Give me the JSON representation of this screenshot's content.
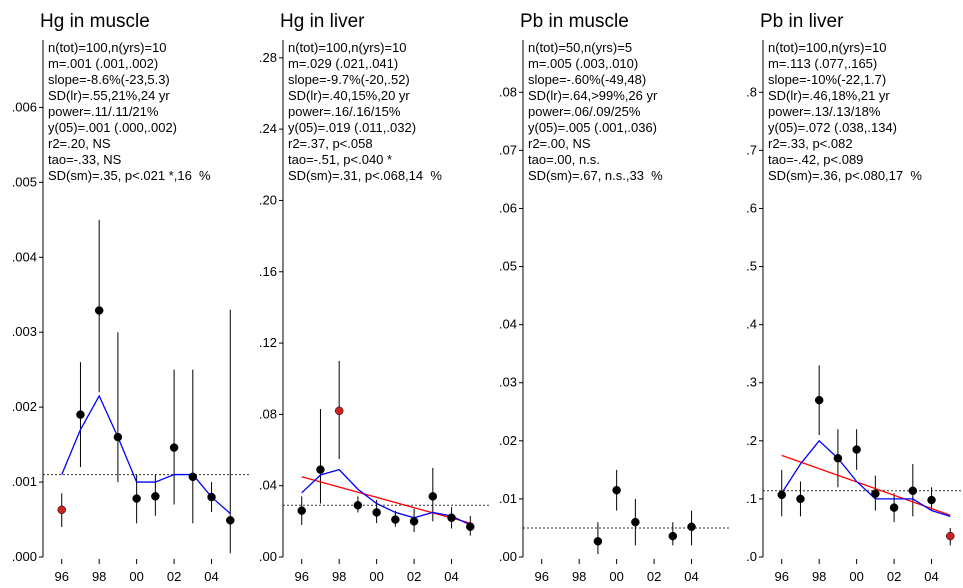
{
  "chart_data": [
    {
      "type": "scatter",
      "title": "Hg in muscle",
      "stats": [
        "n(tot)=100,n(yrs)=10",
        "m=.001 (.001,.002)",
        "slope=-8.6%(-23,5.3)",
        "SD(lr)=.55,21%,24 yr",
        "power=.11/.11/21%",
        "y(05)=.001 (.000,.002)",
        "r2=.20, NS",
        "tao=-.33, NS",
        "SD(sm)=.35, p<.021 *,16  %"
      ],
      "xlim": [
        1995,
        2006
      ],
      "ylim": [
        0,
        0.0069
      ],
      "xticks": [
        {
          "value": 1996,
          "label": "96"
        },
        {
          "value": 1998,
          "label": "98"
        },
        {
          "value": 2000,
          "label": "00"
        },
        {
          "value": 2002,
          "label": "02"
        },
        {
          "value": 2004,
          "label": "04"
        }
      ],
      "yticks": [
        {
          "value": 0,
          "label": ".000"
        },
        {
          "value": 0.001,
          "label": ".001"
        },
        {
          "value": 0.002,
          "label": ".002"
        },
        {
          "value": 0.003,
          "label": ".003"
        },
        {
          "value": 0.004,
          "label": ".004"
        },
        {
          "value": 0.005,
          "label": ".005"
        },
        {
          "value": 0.006,
          "label": ".006"
        }
      ],
      "x": [
        1996,
        1997,
        1998,
        1999,
        2000,
        2001,
        2002,
        2003,
        2004,
        2005
      ],
      "values": [
        0.00063,
        0.0019,
        0.00329,
        0.0016,
        0.00078,
        0.00081,
        0.00146,
        0.00107,
        0.0008,
        0.00049
      ],
      "point_colors": [
        "#cc2222",
        "#000000",
        "#000000",
        "#000000",
        "#000000",
        "#000000",
        "#000000",
        "#000000",
        "#000000",
        "#000000"
      ],
      "ci_low": [
        0.0004,
        0.0012,
        0.0022,
        0.001,
        0.00045,
        0.00055,
        0.0007,
        0.00045,
        0.0006,
        5e-05
      ],
      "ci_high": [
        0.00085,
        0.0026,
        0.0045,
        0.003,
        0.0011,
        0.0011,
        0.0025,
        0.0025,
        0.001,
        0.0033
      ],
      "smooth": {
        "color": "#0000ff",
        "x": [
          1996,
          1997,
          1998,
          1999,
          2000,
          2001,
          2002,
          2003,
          2004,
          2005
        ],
        "values": [
          0.0011,
          0.0017,
          0.00215,
          0.0016,
          0.001,
          0.001,
          0.0011,
          0.0011,
          0.0008,
          0.00058
        ]
      },
      "reference": {
        "value": 0.0011
      }
    },
    {
      "type": "scatter",
      "title": "Hg in liver",
      "stats": [
        "n(tot)=100,n(yrs)=10",
        "m=.029 (.021,.041)",
        "slope=-9.7%(-20,.52)",
        "SD(lr)=.40,15%,20 yr",
        "power=.16/.16/15%",
        "y(05)=.019 (.011,.032)",
        "r2=.37, p<.058",
        "tao=-.51, p<.040 *",
        "SD(sm)=.31, p<.068,14  %"
      ],
      "xlim": [
        1995,
        2006
      ],
      "ylim": [
        0,
        0.29
      ],
      "xticks": [
        {
          "value": 1996,
          "label": "96"
        },
        {
          "value": 1998,
          "label": "98"
        },
        {
          "value": 2000,
          "label": "00"
        },
        {
          "value": 2002,
          "label": "02"
        },
        {
          "value": 2004,
          "label": "04"
        }
      ],
      "yticks": [
        {
          "value": 0,
          "label": ".00"
        },
        {
          "value": 0.04,
          "label": ".04"
        },
        {
          "value": 0.08,
          "label": ".08"
        },
        {
          "value": 0.12,
          "label": ".12"
        },
        {
          "value": 0.16,
          "label": ".16"
        },
        {
          "value": 0.2,
          "label": ".20"
        },
        {
          "value": 0.24,
          "label": ".24"
        },
        {
          "value": 0.28,
          "label": ".28"
        }
      ],
      "x": [
        1996,
        1997,
        1998,
        1999,
        2000,
        2001,
        2002,
        2003,
        2004,
        2005
      ],
      "values": [
        0.026,
        0.049,
        0.082,
        0.029,
        0.025,
        0.021,
        0.02,
        0.034,
        0.022,
        0.017
      ],
      "point_colors": [
        "#000000",
        "#000000",
        "#cc2222",
        "#000000",
        "#000000",
        "#000000",
        "#000000",
        "#000000",
        "#000000",
        "#000000"
      ],
      "ci_low": [
        0.018,
        0.03,
        0.055,
        0.025,
        0.019,
        0.017,
        0.014,
        0.02,
        0.016,
        0.012
      ],
      "ci_high": [
        0.034,
        0.083,
        0.11,
        0.034,
        0.032,
        0.026,
        0.027,
        0.05,
        0.028,
        0.023
      ],
      "smooth": {
        "color": "#0000ff",
        "x": [
          1996,
          1997,
          1998,
          1999,
          2000,
          2001,
          2002,
          2003,
          2004,
          2005
        ],
        "values": [
          0.036,
          0.046,
          0.049,
          0.038,
          0.03,
          0.025,
          0.022,
          0.025,
          0.023,
          0.018
        ]
      },
      "trend": {
        "color": "#ff0000",
        "x": [
          1996,
          2005
        ],
        "values": [
          0.045,
          0.019
        ]
      },
      "reference": {
        "value": 0.029
      }
    },
    {
      "type": "scatter",
      "title": "Pb in muscle",
      "stats": [
        "n(tot)=50,n(yrs)=5",
        "m=.005 (.003,.010)",
        "slope=-.60%(-49,48)",
        "SD(lr)=.64,>99%,26 yr",
        "power=.06/.09/25%",
        "y(05)=.005 (.001,.036)",
        "r2=.00, NS",
        "tao=.00, n.s.",
        "SD(sm)=.67, n.s.,33  %"
      ],
      "xlim": [
        1995,
        2006
      ],
      "ylim": [
        0,
        0.089
      ],
      "xticks": [
        {
          "value": 1996,
          "label": "96"
        },
        {
          "value": 1998,
          "label": "98"
        },
        {
          "value": 2000,
          "label": "00"
        },
        {
          "value": 2002,
          "label": "02"
        },
        {
          "value": 2004,
          "label": "04"
        }
      ],
      "yticks": [
        {
          "value": 0,
          "label": ".00"
        },
        {
          "value": 0.01,
          "label": ".01"
        },
        {
          "value": 0.02,
          "label": ".02"
        },
        {
          "value": 0.03,
          "label": ".03"
        },
        {
          "value": 0.04,
          "label": ".04"
        },
        {
          "value": 0.05,
          "label": ".05"
        },
        {
          "value": 0.06,
          "label": ".06"
        },
        {
          "value": 0.07,
          "label": ".07"
        },
        {
          "value": 0.08,
          "label": ".08"
        }
      ],
      "x": [
        1999,
        2000,
        2001,
        2003,
        2004
      ],
      "values": [
        0.0027,
        0.0115,
        0.006,
        0.0036,
        0.0052
      ],
      "point_colors": [
        "#000000",
        "#000000",
        "#000000",
        "#000000",
        "#000000"
      ],
      "ci_low": [
        0.0005,
        0.008,
        0.002,
        0.002,
        0.002
      ],
      "ci_high": [
        0.006,
        0.015,
        0.01,
        0.006,
        0.008
      ],
      "reference": {
        "value": 0.005
      }
    },
    {
      "type": "scatter",
      "title": "Pb in liver",
      "stats": [
        "n(tot)=100,n(yrs)=10",
        "m=.113 (.077,.165)",
        "slope=-10%(-22,1.7)",
        "SD(lr)=.46,18%,21 yr",
        "power=.13/.13/18%",
        "y(05)=.072 (.038,.134)",
        "r2=.33, p<.082",
        "tao=-.42, p<.089",
        "SD(sm)=.36, p<.080,17  %"
      ],
      "xlim": [
        1995,
        2006
      ],
      "ylim": [
        0,
        0.89
      ],
      "xticks": [
        {
          "value": 1996,
          "label": "96"
        },
        {
          "value": 1998,
          "label": "98"
        },
        {
          "value": 2000,
          "label": "00"
        },
        {
          "value": 2002,
          "label": "02"
        },
        {
          "value": 2004,
          "label": "04"
        }
      ],
      "yticks": [
        {
          "value": 0,
          "label": ".0"
        },
        {
          "value": 0.1,
          "label": ".1"
        },
        {
          "value": 0.2,
          "label": ".2"
        },
        {
          "value": 0.3,
          "label": ".3"
        },
        {
          "value": 0.4,
          "label": ".4"
        },
        {
          "value": 0.5,
          "label": ".5"
        },
        {
          "value": 0.6,
          "label": ".6"
        },
        {
          "value": 0.7,
          "label": ".7"
        },
        {
          "value": 0.8,
          "label": ".8"
        }
      ],
      "x": [
        1996,
        1997,
        1998,
        1999,
        2000,
        2001,
        2002,
        2003,
        2004,
        2005
      ],
      "values": [
        0.107,
        0.1,
        0.27,
        0.17,
        0.185,
        0.109,
        0.085,
        0.114,
        0.098,
        0.036
      ],
      "point_colors": [
        "#000000",
        "#000000",
        "#000000",
        "#000000",
        "#000000",
        "#000000",
        "#000000",
        "#000000",
        "#000000",
        "#cc2222"
      ],
      "ci_low": [
        0.07,
        0.07,
        0.21,
        0.12,
        0.15,
        0.08,
        0.06,
        0.07,
        0.08,
        0.02
      ],
      "ci_high": [
        0.15,
        0.13,
        0.33,
        0.22,
        0.22,
        0.14,
        0.11,
        0.16,
        0.12,
        0.05
      ],
      "smooth": {
        "color": "#0000ff",
        "x": [
          1996,
          1997,
          1998,
          1999,
          2000,
          2001,
          2002,
          2003,
          2004,
          2005
        ],
        "values": [
          0.11,
          0.16,
          0.2,
          0.17,
          0.13,
          0.1,
          0.1,
          0.1,
          0.08,
          0.07
        ]
      },
      "trend": {
        "color": "#ff0000",
        "x": [
          1996,
          2005
        ],
        "values": [
          0.175,
          0.072
        ]
      },
      "reference": {
        "value": 0.114
      }
    }
  ]
}
